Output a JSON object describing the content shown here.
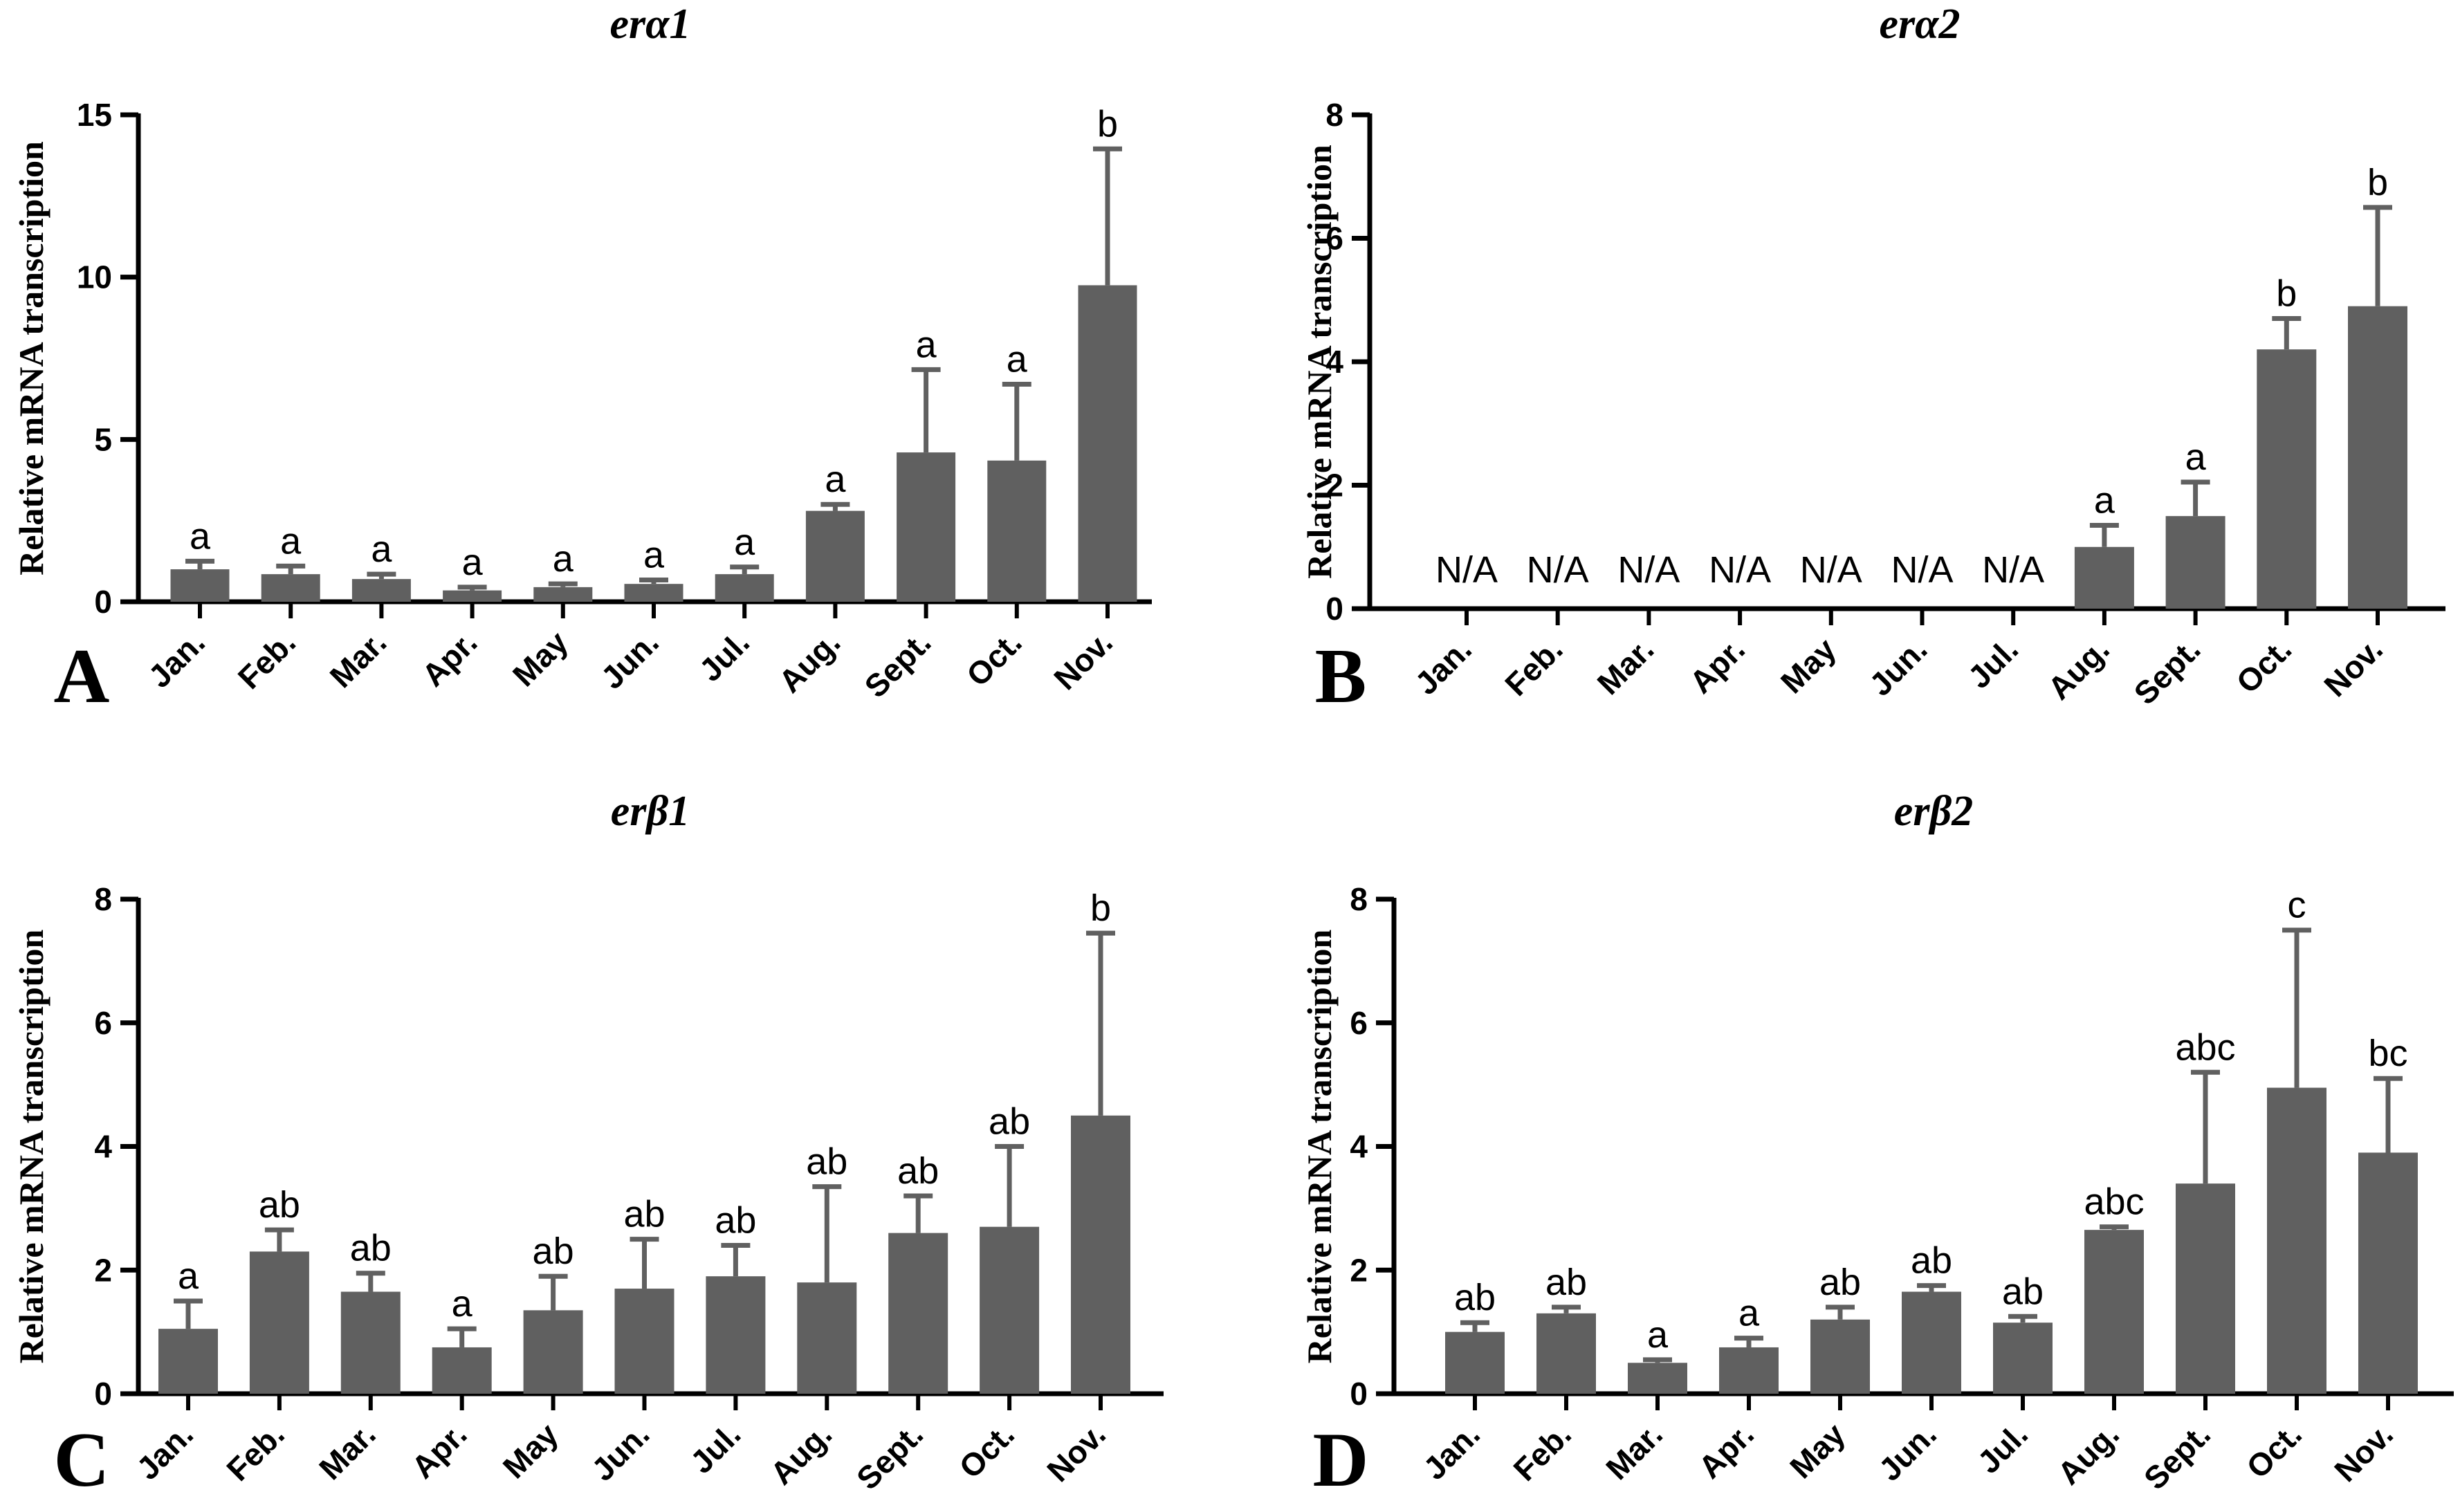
{
  "figure": {
    "bar_color": "#606060",
    "axis_color": "#000000"
  },
  "chart_data": [
    {
      "type": "bar",
      "panel": "A",
      "title": "erα1",
      "ylabel": "Relative mRNA transcription",
      "xlabel": "",
      "categories": [
        "Jan.",
        "Feb.",
        "Mar.",
        "Apr.",
        "May",
        "Jun.",
        "Jul.",
        "Aug.",
        "Sept.",
        "Oct.",
        "Nov."
      ],
      "values": [
        1.0,
        0.85,
        0.7,
        0.35,
        0.45,
        0.55,
        0.85,
        2.8,
        4.6,
        4.35,
        9.75
      ],
      "errors": [
        0.25,
        0.25,
        0.15,
        0.1,
        0.1,
        0.12,
        0.22,
        0.2,
        2.55,
        2.35,
        4.2
      ],
      "significance": [
        "a",
        "a",
        "a",
        "a",
        "a",
        "a",
        "a",
        "a",
        "a",
        "a",
        "b"
      ],
      "ylim": [
        0,
        15
      ],
      "yticks": [
        0,
        5,
        10,
        15
      ],
      "grid": false
    },
    {
      "type": "bar",
      "panel": "B",
      "title": "erα2",
      "ylabel": "Relative mRNA transcription",
      "xlabel": "",
      "categories": [
        "Jan.",
        "Feb.",
        "Mar.",
        "Apr.",
        "May",
        "Jun.",
        "Jul.",
        "Aug.",
        "Sept.",
        "Oct.",
        "Nov."
      ],
      "values": [
        null,
        null,
        null,
        null,
        null,
        null,
        null,
        1.0,
        1.5,
        4.2,
        4.9
      ],
      "errors": [
        null,
        null,
        null,
        null,
        null,
        null,
        null,
        0.35,
        0.55,
        0.5,
        1.6
      ],
      "significance": [
        "N/A",
        "N/A",
        "N/A",
        "N/A",
        "N/A",
        "N/A",
        "N/A",
        "a",
        "a",
        "b",
        "b"
      ],
      "ylim": [
        0,
        8
      ],
      "yticks": [
        0,
        2,
        4,
        6,
        8
      ],
      "grid": false
    },
    {
      "type": "bar",
      "panel": "C",
      "title": "erβ1",
      "ylabel": "Relative mRNA transcription",
      "xlabel": "",
      "categories": [
        "Jan.",
        "Feb.",
        "Mar.",
        "Apr.",
        "May",
        "Jun.",
        "Jul.",
        "Aug.",
        "Sept.",
        "Oct.",
        "Nov."
      ],
      "values": [
        1.05,
        2.3,
        1.65,
        0.75,
        1.35,
        1.7,
        1.9,
        1.8,
        2.6,
        2.7,
        4.5
      ],
      "errors": [
        0.45,
        0.35,
        0.3,
        0.3,
        0.55,
        0.8,
        0.5,
        1.55,
        0.6,
        1.3,
        2.95
      ],
      "significance": [
        "a",
        "ab",
        "ab",
        "a",
        "ab",
        "ab",
        "ab",
        "ab",
        "ab",
        "ab",
        "b"
      ],
      "ylim": [
        0,
        8
      ],
      "yticks": [
        0,
        2,
        4,
        6,
        8
      ],
      "grid": false
    },
    {
      "type": "bar",
      "panel": "D",
      "title": "erβ2",
      "ylabel": "Relative mRNA transcription",
      "xlabel": "",
      "categories": [
        "Jan.",
        "Feb.",
        "Mar.",
        "Apr.",
        "May",
        "Jun.",
        "Jul.",
        "Aug.",
        "Sept.",
        "Oct.",
        "Nov."
      ],
      "values": [
        1.0,
        1.3,
        0.5,
        0.75,
        1.2,
        1.65,
        1.15,
        2.65,
        3.4,
        4.95,
        3.9
      ],
      "errors": [
        0.15,
        0.1,
        0.05,
        0.15,
        0.2,
        0.1,
        0.1,
        0.05,
        1.8,
        2.55,
        1.2
      ],
      "significance": [
        "ab",
        "ab",
        "a",
        "a",
        "ab",
        "ab",
        "ab",
        "abc",
        "abc",
        "c",
        "bc"
      ],
      "ylim": [
        0,
        8
      ],
      "yticks": [
        0,
        2,
        4,
        6,
        8
      ],
      "grid": false
    }
  ]
}
